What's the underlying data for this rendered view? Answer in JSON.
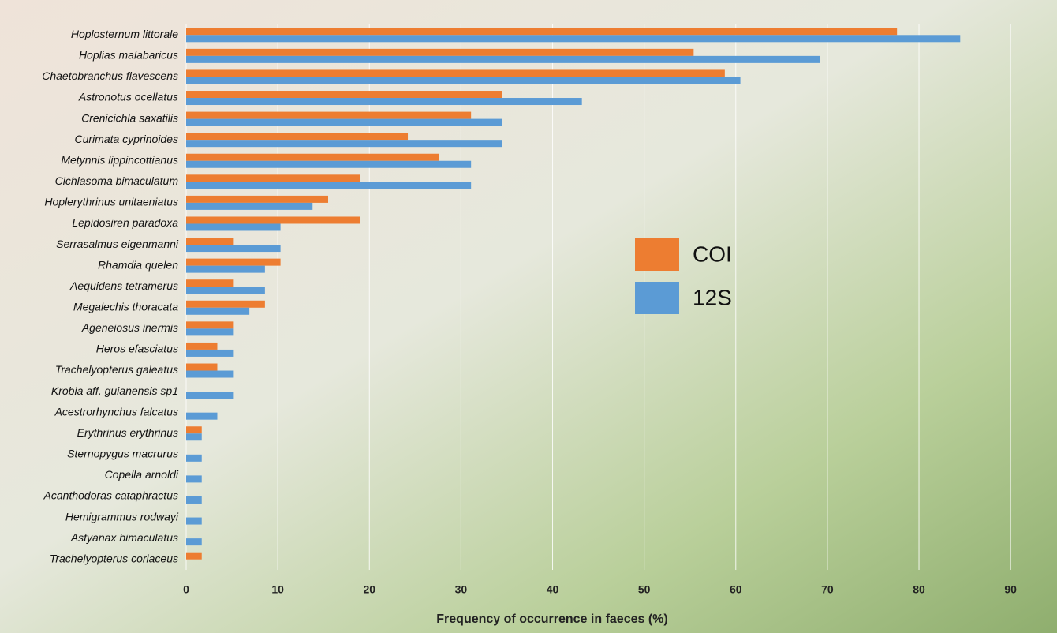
{
  "chart_data": {
    "type": "hbar",
    "x_label": "Frequency of occurrence in faeces (%)",
    "categories": [
      "Hoplosternum littorale",
      "Hoplias malabaricus",
      "Chaetobranchus flavescens",
      "Astronotus ocellatus",
      "Crenicichla saxatilis",
      "Curimata cyprinoides",
      "Metynnis lippincottianus",
      "Cichlasoma bimaculatum",
      "Hoplerythrinus unitaeniatus",
      "Lepidosiren paradoxa",
      "Serrasalmus eigenmanni",
      "Rhamdia quelen",
      "Aequidens tetramerus",
      "Megalechis thoracata",
      "Ageneiosus inermis",
      "Heros efasciatus",
      "Trachelyopterus galeatus",
      "Krobia aff. guianensis sp1",
      "Acestrorhynchus falcatus",
      "Erythrinus erythrinus",
      "Sternopygus macrurus",
      "Copella arnoldi",
      "Acanthodoras cataphractus",
      "Hemigrammus rodwayi",
      "Astyanax bimaculatus",
      "Trachelyopterus coriaceus"
    ],
    "series": [
      {
        "name": "COI",
        "color": "#ed7d31",
        "values": [
          77.6,
          55.4,
          58.8,
          34.5,
          31.1,
          24.2,
          27.6,
          19.0,
          15.5,
          19.0,
          5.2,
          10.3,
          5.2,
          8.6,
          5.2,
          3.4,
          3.4,
          0,
          0,
          1.7,
          0,
          0,
          0,
          0,
          0,
          1.7
        ]
      },
      {
        "name": "12S",
        "color": "#5b9bd5",
        "values": [
          84.5,
          69.2,
          60.5,
          43.2,
          34.5,
          34.5,
          31.1,
          31.1,
          13.8,
          10.3,
          10.3,
          8.6,
          8.6,
          6.9,
          5.2,
          5.2,
          5.2,
          5.2,
          3.4,
          1.7,
          1.7,
          1.7,
          1.7,
          1.7,
          1.7,
          0
        ]
      }
    ],
    "xlim": [
      0,
      93
    ],
    "xticks": [
      0,
      10,
      20,
      30,
      40,
      50,
      60,
      70,
      80,
      90
    ],
    "grid": true
  }
}
